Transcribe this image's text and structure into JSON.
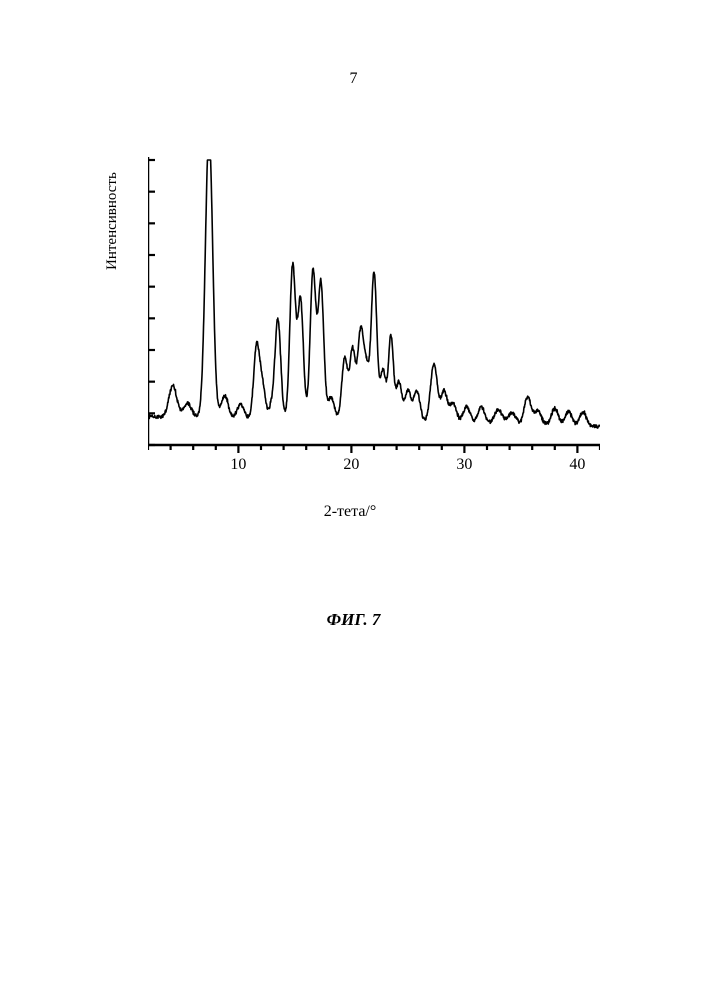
{
  "page_number": "7",
  "caption": "ФИГ. 7",
  "chart": {
    "type": "line",
    "xlabel": "2-тета/°",
    "ylabel": "Интенсивность",
    "x_range": [
      2,
      42
    ],
    "x_ticks": [
      10,
      20,
      30,
      40
    ],
    "x_minor_step": 2,
    "y_range": [
      0,
      100
    ],
    "y_tick_count": 9,
    "axis_color": "#000000",
    "trace_color": "#000000",
    "background": "#ffffff",
    "baseline": 10,
    "noise": 1.1,
    "peaks": [
      {
        "x": 4.2,
        "h": 11,
        "w": 0.35
      },
      {
        "x": 5.5,
        "h": 5,
        "w": 0.35
      },
      {
        "x": 7.4,
        "h": 100,
        "w": 0.32
      },
      {
        "x": 8.8,
        "h": 8,
        "w": 0.3
      },
      {
        "x": 10.2,
        "h": 5,
        "w": 0.3
      },
      {
        "x": 11.6,
        "h": 25,
        "w": 0.25
      },
      {
        "x": 12.1,
        "h": 12,
        "w": 0.25
      },
      {
        "x": 13.0,
        "h": 5,
        "w": 0.3
      },
      {
        "x": 13.5,
        "h": 34,
        "w": 0.25
      },
      {
        "x": 14.8,
        "h": 54,
        "w": 0.25
      },
      {
        "x": 15.5,
        "h": 42,
        "w": 0.25
      },
      {
        "x": 16.6,
        "h": 52,
        "w": 0.25
      },
      {
        "x": 17.3,
        "h": 48,
        "w": 0.25
      },
      {
        "x": 18.2,
        "h": 8,
        "w": 0.3
      },
      {
        "x": 19.4,
        "h": 22,
        "w": 0.25
      },
      {
        "x": 20.1,
        "h": 25,
        "w": 0.25
      },
      {
        "x": 20.8,
        "h": 30,
        "w": 0.25
      },
      {
        "x": 21.3,
        "h": 18,
        "w": 0.25
      },
      {
        "x": 22.0,
        "h": 52,
        "w": 0.25
      },
      {
        "x": 22.8,
        "h": 18,
        "w": 0.25
      },
      {
        "x": 23.5,
        "h": 30,
        "w": 0.22
      },
      {
        "x": 24.2,
        "h": 14,
        "w": 0.25
      },
      {
        "x": 25.0,
        "h": 11,
        "w": 0.28
      },
      {
        "x": 25.8,
        "h": 11,
        "w": 0.28
      },
      {
        "x": 27.3,
        "h": 21,
        "w": 0.3
      },
      {
        "x": 28.2,
        "h": 11,
        "w": 0.28
      },
      {
        "x": 29.0,
        "h": 7,
        "w": 0.3
      },
      {
        "x": 30.2,
        "h": 6,
        "w": 0.3
      },
      {
        "x": 31.5,
        "h": 6,
        "w": 0.3
      },
      {
        "x": 33.0,
        "h": 5,
        "w": 0.35
      },
      {
        "x": 34.2,
        "h": 4,
        "w": 0.35
      },
      {
        "x": 35.6,
        "h": 10,
        "w": 0.3
      },
      {
        "x": 36.5,
        "h": 5,
        "w": 0.3
      },
      {
        "x": 38.0,
        "h": 6,
        "w": 0.3
      },
      {
        "x": 39.2,
        "h": 5,
        "w": 0.3
      },
      {
        "x": 40.5,
        "h": 5,
        "w": 0.3
      }
    ]
  }
}
